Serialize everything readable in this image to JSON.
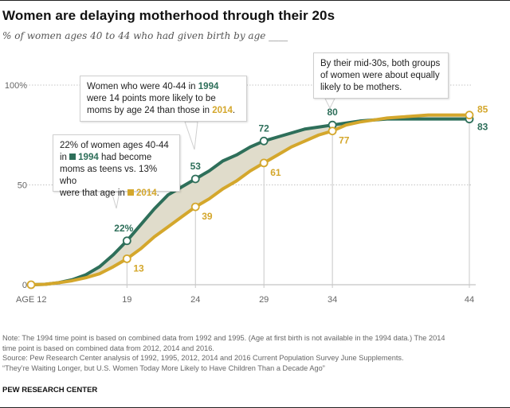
{
  "header": {
    "title": "Women are delaying motherhood through their 20s",
    "subtitle": "% of women ages 40 to 44 who had given birth by age ____"
  },
  "colors": {
    "series_1994": "#2e6f5a",
    "series_2014": "#d4a72c",
    "gap_fill": "#e0dccb",
    "grid": "#bdbdbd",
    "axis_text": "#666666"
  },
  "callouts": {
    "teens": {
      "line1": "22% of women ages 40-44",
      "line2_pre": "in ",
      "line2_year": "1994",
      "line2_post": " had become",
      "line3": "moms as teens vs. 13% who",
      "line4_pre": "were that age in ",
      "line4_year": "2014",
      "line4_post": "."
    },
    "age24": {
      "line1_pre": "Women who were 40-44 in ",
      "line1_year": "1994",
      "line2": "were 14 points more likely to be",
      "line3_pre": "moms by age 24 than those in ",
      "line3_year": "2014",
      "line3_post": "."
    },
    "mid30s": {
      "line1": "By their mid-30s, both groups",
      "line2": "of women were about equally",
      "line3": "likely to be mothers."
    }
  },
  "chart_data": {
    "type": "line",
    "title": "Women are delaying motherhood through their 20s",
    "subtitle": "% of women ages 40 to 44 who had given birth by age ____",
    "xlabel": "Age",
    "ylabel": "%",
    "xlim": [
      12,
      44
    ],
    "ylim": [
      0,
      100
    ],
    "x_ticks": [
      {
        "value": 12,
        "label": "AGE 12"
      },
      {
        "value": 19,
        "label": "19"
      },
      {
        "value": 24,
        "label": "24"
      },
      {
        "value": 29,
        "label": "29"
      },
      {
        "value": 34,
        "label": "34"
      },
      {
        "value": 44,
        "label": "44"
      }
    ],
    "y_ticks": [
      {
        "value": 0,
        "label": "0"
      },
      {
        "value": 50,
        "label": "50"
      },
      {
        "value": 100,
        "label": "100%"
      }
    ],
    "grid": "horizontal dotted at 50 and 100; vertical lines at highlighted ages",
    "x": [
      12,
      13,
      14,
      15,
      16,
      17,
      18,
      19,
      20,
      21,
      22,
      23,
      24,
      25,
      26,
      27,
      28,
      29,
      30,
      31,
      32,
      33,
      34,
      35,
      36,
      37,
      38,
      39,
      40,
      41,
      42,
      43,
      44
    ],
    "series": [
      {
        "name": "1994",
        "values": [
          0,
          0.2,
          1,
          2.5,
          5,
          9,
          15,
          22,
          30,
          38,
          45,
          49,
          53,
          57,
          62,
          65,
          69,
          72,
          74,
          76,
          78,
          79,
          80,
          81,
          82,
          82.5,
          83,
          83,
          83,
          83,
          83,
          83,
          83
        ],
        "labeled_points": [
          {
            "x": 19,
            "label": "22%"
          },
          {
            "x": 24,
            "label": "53"
          },
          {
            "x": 29,
            "label": "72"
          },
          {
            "x": 34,
            "label": "80"
          },
          {
            "x": 44,
            "label": "83"
          }
        ]
      },
      {
        "name": "2014",
        "values": [
          0,
          0.2,
          1,
          2,
          3.5,
          5.5,
          9,
          13,
          18,
          24,
          29,
          34,
          39,
          43,
          48,
          52,
          57,
          61,
          65,
          69,
          72,
          75,
          77,
          80,
          81.5,
          82.5,
          83.5,
          84,
          84.5,
          85,
          85,
          85,
          85
        ],
        "labeled_points": [
          {
            "x": 12,
            "label": ""
          },
          {
            "x": 19,
            "label": "13"
          },
          {
            "x": 24,
            "label": "39"
          },
          {
            "x": 29,
            "label": "61"
          },
          {
            "x": 34,
            "label": "77"
          },
          {
            "x": 44,
            "label": "85"
          }
        ]
      }
    ],
    "annotations": [
      "22% of women ages 40-44 in 1994 had become moms as teens vs. 13% who were that age in 2014.",
      "Women who were 40-44 in 1994 were 14 points more likely to be moms by age 24 than those in 2014.",
      "By their mid-30s, both groups of women were about equally likely to be mothers."
    ]
  },
  "footer": {
    "note_line1": "Note: The 1994 time point is based on combined data from 1992 and 1995. (Age at first birth is not available in the 1994 data.) The 2014",
    "note_line2": "time point is based on combined data from 2012, 2014 and 2016.",
    "source": "Source: Pew Research Center analysis of 1992, 1995, 2012, 2014 and 2016 Current Population Survey June Supplements.",
    "report": "“They’re Waiting Longer, but U.S. Women Today More Likely to Have Children Than a Decade Ago”",
    "brand": "PEW RESEARCH CENTER"
  }
}
